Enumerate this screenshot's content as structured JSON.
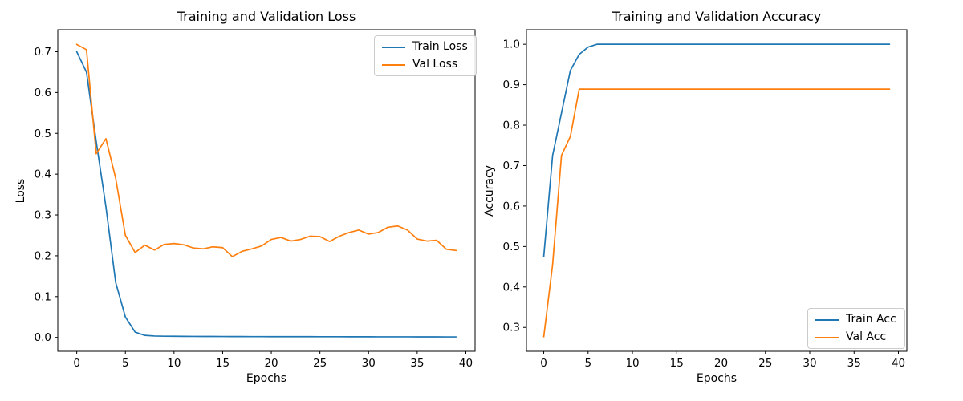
{
  "figure": {
    "background": "#ffffff"
  },
  "colors": {
    "train": "#1f77b4",
    "val": "#ff7f0e",
    "spine": "#000000",
    "legend_border": "#cccccc"
  },
  "chart_data": [
    {
      "type": "line",
      "title": "Training and Validation Loss",
      "xlabel": "Epochs",
      "ylabel": "Loss",
      "x": [
        0,
        1,
        2,
        3,
        4,
        5,
        6,
        7,
        8,
        9,
        10,
        11,
        12,
        13,
        14,
        15,
        16,
        17,
        18,
        19,
        20,
        21,
        22,
        23,
        24,
        25,
        26,
        27,
        28,
        29,
        30,
        31,
        32,
        33,
        34,
        35,
        36,
        37,
        38,
        39
      ],
      "series": [
        {
          "name": "Train Loss",
          "color": "#1f77b4",
          "values": [
            0.7,
            0.65,
            0.48,
            0.32,
            0.135,
            0.05,
            0.013,
            0.005,
            0.0035,
            0.003,
            0.0028,
            0.0026,
            0.0025,
            0.0024,
            0.0023,
            0.0022,
            0.0021,
            0.0021,
            0.002,
            0.002,
            0.0019,
            0.0019,
            0.0018,
            0.0018,
            0.0018,
            0.0017,
            0.0017,
            0.0017,
            0.0016,
            0.0016,
            0.0016,
            0.0015,
            0.0015,
            0.0015,
            0.0015,
            0.0014,
            0.0014,
            0.0014,
            0.0013,
            0.0013
          ]
        },
        {
          "name": "Val Loss",
          "color": "#ff7f0e",
          "values": [
            0.718,
            0.705,
            0.45,
            0.487,
            0.39,
            0.25,
            0.208,
            0.226,
            0.214,
            0.228,
            0.23,
            0.227,
            0.219,
            0.217,
            0.222,
            0.22,
            0.198,
            0.211,
            0.217,
            0.224,
            0.24,
            0.245,
            0.236,
            0.24,
            0.248,
            0.247,
            0.235,
            0.248,
            0.257,
            0.263,
            0.253,
            0.257,
            0.27,
            0.273,
            0.263,
            0.241,
            0.236,
            0.238,
            0.216,
            0.213
          ]
        }
      ],
      "xlim": [
        -1.95,
        40.95
      ],
      "ylim": [
        -0.034,
        0.754
      ],
      "xticks": [
        0,
        5,
        10,
        15,
        20,
        25,
        30,
        35,
        40
      ],
      "yticks": [
        0.0,
        0.1,
        0.2,
        0.3,
        0.4,
        0.5,
        0.6,
        0.7
      ],
      "ytick_decimals": 1,
      "grid": false,
      "legend": {
        "position": "upper-right",
        "labels": [
          "Train Loss",
          "Val Loss"
        ]
      }
    },
    {
      "type": "line",
      "title": "Training and Validation Accuracy",
      "xlabel": "Epochs",
      "ylabel": "Accuracy",
      "x": [
        0,
        1,
        2,
        3,
        4,
        5,
        6,
        7,
        8,
        9,
        10,
        11,
        12,
        13,
        14,
        15,
        16,
        17,
        18,
        19,
        20,
        21,
        22,
        23,
        24,
        25,
        26,
        27,
        28,
        29,
        30,
        31,
        32,
        33,
        34,
        35,
        36,
        37,
        38,
        39
      ],
      "series": [
        {
          "name": "Train Acc",
          "color": "#1f77b4",
          "values": [
            0.475,
            0.725,
            0.83,
            0.935,
            0.975,
            0.993,
            1.0,
            1.0,
            1.0,
            1.0,
            1.0,
            1.0,
            1.0,
            1.0,
            1.0,
            1.0,
            1.0,
            1.0,
            1.0,
            1.0,
            1.0,
            1.0,
            1.0,
            1.0,
            1.0,
            1.0,
            1.0,
            1.0,
            1.0,
            1.0,
            1.0,
            1.0,
            1.0,
            1.0,
            1.0,
            1.0,
            1.0,
            1.0,
            1.0,
            1.0
          ]
        },
        {
          "name": "Val Acc",
          "color": "#ff7f0e",
          "values": [
            0.277,
            0.455,
            0.725,
            0.772,
            0.889,
            0.889,
            0.889,
            0.889,
            0.889,
            0.889,
            0.889,
            0.889,
            0.889,
            0.889,
            0.889,
            0.889,
            0.889,
            0.889,
            0.889,
            0.889,
            0.889,
            0.889,
            0.889,
            0.889,
            0.889,
            0.889,
            0.889,
            0.889,
            0.889,
            0.889,
            0.889,
            0.889,
            0.889,
            0.889,
            0.889,
            0.889,
            0.889,
            0.889,
            0.889,
            0.889
          ]
        }
      ],
      "xlim": [
        -1.95,
        40.95
      ],
      "ylim": [
        0.241,
        1.036
      ],
      "xticks": [
        0,
        5,
        10,
        15,
        20,
        25,
        30,
        35,
        40
      ],
      "yticks": [
        0.3,
        0.4,
        0.5,
        0.6,
        0.7,
        0.8,
        0.9,
        1.0
      ],
      "ytick_decimals": 1,
      "grid": false,
      "legend": {
        "position": "lower-right",
        "labels": [
          "Train Acc",
          "Val Acc"
        ]
      }
    }
  ]
}
